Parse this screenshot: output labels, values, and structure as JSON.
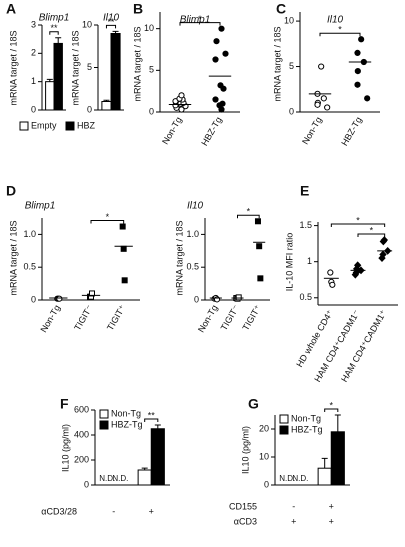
{
  "chart_data": [
    {
      "panel": "A",
      "type": "bar",
      "title": "Blimp1",
      "ylabel": "mRNA target / 18S",
      "categories": [
        null
      ],
      "series": [
        {
          "name": "Empty",
          "color": "#ffffff",
          "values": [
            1.0
          ],
          "errors": [
            0.08
          ]
        },
        {
          "name": "HBZ",
          "color": "#000000",
          "values": [
            2.35
          ],
          "errors": [
            0.2
          ]
        }
      ],
      "ylim": [
        0,
        3
      ],
      "yticks": [
        0,
        1,
        2,
        3
      ],
      "significance": [
        {
          "label": "**",
          "between": [
            "Empty",
            "HBZ"
          ]
        }
      ],
      "legend": "below"
    },
    {
      "type": "bar",
      "title": "Il10",
      "ylabel": "mRNA target / 18S",
      "categories": [
        null
      ],
      "series": [
        {
          "name": "Empty",
          "color": "#ffffff",
          "values": [
            1.0
          ],
          "errors": [
            0.15
          ]
        },
        {
          "name": "HBZ",
          "color": "#000000",
          "values": [
            9.0
          ],
          "errors": [
            0.25
          ]
        }
      ],
      "ylim": [
        0,
        10
      ],
      "yticks": [
        0,
        5,
        10
      ],
      "significance": [
        {
          "label": "**",
          "between": [
            "Empty",
            "HBZ"
          ]
        }
      ]
    },
    {
      "panel": "B",
      "type": "scatter",
      "title": "Blimp1",
      "ylabel": "mRNA target / 18S",
      "categories": [
        "Non-Tg",
        "HBZ-Tg"
      ],
      "markers": [
        "open-circle",
        "filled-circle"
      ],
      "points": [
        [
          0.3,
          0.5,
          0.7,
          0.8,
          1.0,
          1.1,
          1.3,
          1.5,
          1.6,
          2.0
        ],
        [
          10.0,
          8.5,
          7.0,
          6.3,
          3.2,
          2.8,
          1.5,
          1.0,
          0.8,
          0.3
        ]
      ],
      "means": [
        0.9,
        4.3
      ],
      "ylim": [
        0,
        12
      ],
      "yticks": [
        0,
        5,
        10
      ],
      "significance": [
        {
          "label": "*",
          "between": [
            "Non-Tg",
            "HBZ-Tg"
          ]
        }
      ]
    },
    {
      "panel": "C",
      "type": "scatter",
      "title": "Il10",
      "ylabel": "mRNA target / 18S",
      "categories": [
        "Non-Tg",
        "HBZ-Tg"
      ],
      "markers": [
        "open-circle",
        "filled-circle"
      ],
      "points": [
        [
          5.0,
          2.0,
          1.5,
          1.0,
          0.8,
          0.5
        ],
        [
          8.0,
          6.5,
          5.5,
          4.5,
          3.0,
          1.5
        ]
      ],
      "means": [
        2.0,
        5.5
      ],
      "ylim": [
        0,
        11
      ],
      "yticks": [
        0,
        5,
        10
      ],
      "significance": [
        {
          "label": "*",
          "between": [
            "Non-Tg",
            "HBZ-Tg"
          ]
        }
      ]
    },
    {
      "panel": "D",
      "type": "scatter",
      "title": "Blimp1",
      "ylabel": "mRNA target / 18S",
      "categories": [
        "Non-Tg",
        "TIGIT⁻",
        "TIGIT⁺"
      ],
      "markers": [
        "open-circle",
        "open-square",
        "filled-square"
      ],
      "points": [
        [
          0.02,
          0.02,
          0.02
        ],
        [
          0.05,
          0.05,
          0.1
        ],
        [
          1.12,
          0.78,
          0.3
        ]
      ],
      "means": [
        0.03,
        0.07,
        0.82
      ],
      "ylim": [
        0,
        1.25
      ],
      "yticks": [
        0,
        0.5,
        {
          "value": 1,
          "label": "1.0"
        }
      ],
      "significance": [
        {
          "label": "*",
          "between": [
            "TIGIT⁻",
            "TIGIT⁺"
          ]
        }
      ]
    },
    {
      "type": "scatter",
      "title": "Il10",
      "ylabel": "mRNA target / 18S",
      "categories": [
        "Non-Tg",
        "TIGIT⁻",
        "TIGIT⁺"
      ],
      "markers": [
        "open-circle",
        "open-square",
        "filled-square"
      ],
      "points": [
        [
          0.02,
          0.03,
          0.01
        ],
        [
          0.03,
          0.02,
          0.04
        ],
        [
          1.2,
          0.82,
          0.33
        ]
      ],
      "means": [
        0.03,
        0.03,
        0.88
      ],
      "ylim": [
        0,
        1.25
      ],
      "yticks": [
        0,
        0.5,
        {
          "value": 1,
          "label": "1.0"
        }
      ],
      "significance": [
        {
          "label": "*",
          "between": [
            "TIGIT⁻",
            "TIGIT⁺"
          ]
        }
      ]
    },
    {
      "panel": "E",
      "type": "scatter",
      "ylabel": "IL-10  MFI ratio",
      "categories": [
        "HD whole CD4⁺",
        "HAM CD4⁺CADM1⁻",
        "HAM CD4⁺CADM1⁺"
      ],
      "markers": [
        "open-circle",
        "filled-diamond",
        "filled-diamond"
      ],
      "points": [
        [
          0.85,
          0.72,
          0.68
        ],
        [
          0.95,
          0.9,
          0.88,
          0.85,
          0.82
        ],
        [
          1.3,
          1.28,
          1.15,
          1.1,
          1.05
        ]
      ],
      "means": [
        0.77,
        0.88,
        1.15
      ],
      "ylim": [
        0.4,
        1.55
      ],
      "yticks": [
        0.5,
        1,
        1.5
      ],
      "significance": [
        {
          "label": "*",
          "between": [
            "HD whole CD4⁺",
            "HAM CD4⁺CADM1⁺"
          ]
        },
        {
          "label": "*",
          "between": [
            "HAM CD4⁺CADM1⁻",
            "HAM CD4⁺CADM1⁺"
          ]
        }
      ]
    },
    {
      "panel": "F",
      "type": "bar",
      "ylabel": "IL10 (pg/ml)",
      "categories": [
        null,
        null
      ],
      "series": [
        {
          "name": "Non-Tg",
          "color": "#ffffff",
          "values": [
            null,
            120
          ],
          "errors": [
            null,
            15
          ],
          "value_labels": [
            "N.D.",
            null
          ]
        },
        {
          "name": "HBZ-Tg",
          "color": "#000000",
          "values": [
            null,
            450
          ],
          "errors": [
            null,
            30
          ],
          "value_labels": [
            "N.D.",
            null
          ]
        }
      ],
      "ylim": [
        0,
        600
      ],
      "yticks": [
        0,
        200,
        400,
        600
      ],
      "legend": "upper left",
      "significance": [
        {
          "label": "**",
          "between": [
            "Non-Tg",
            "HBZ-Tg"
          ]
        }
      ],
      "conditions": [
        {
          "label": "αCD3/28",
          "values": [
            "-",
            "+"
          ]
        }
      ]
    },
    {
      "panel": "G",
      "type": "bar",
      "ylabel": "IL10 (pg/ml)",
      "categories": [
        null,
        null
      ],
      "series": [
        {
          "name": "Non-Tg",
          "color": "#ffffff",
          "values": [
            null,
            6
          ],
          "errors": [
            null,
            3.5
          ],
          "value_labels": [
            "N.D.",
            null
          ]
        },
        {
          "name": "HBZ-Tg",
          "color": "#000000",
          "values": [
            null,
            19
          ],
          "errors": [
            null,
            6
          ],
          "value_labels": [
            "N.D.",
            null
          ]
        }
      ],
      "ylim": [
        0,
        25
      ],
      "yticks": [
        0,
        10,
        20
      ],
      "legend": "upper left",
      "significance": [
        {
          "label": "*",
          "between": [
            "Non-Tg",
            "HBZ-Tg"
          ]
        }
      ],
      "conditions": [
        {
          "label": "CD155",
          "values": [
            "-",
            "+"
          ]
        },
        {
          "label": "αCD3",
          "values": [
            "+",
            "+"
          ]
        }
      ]
    }
  ]
}
